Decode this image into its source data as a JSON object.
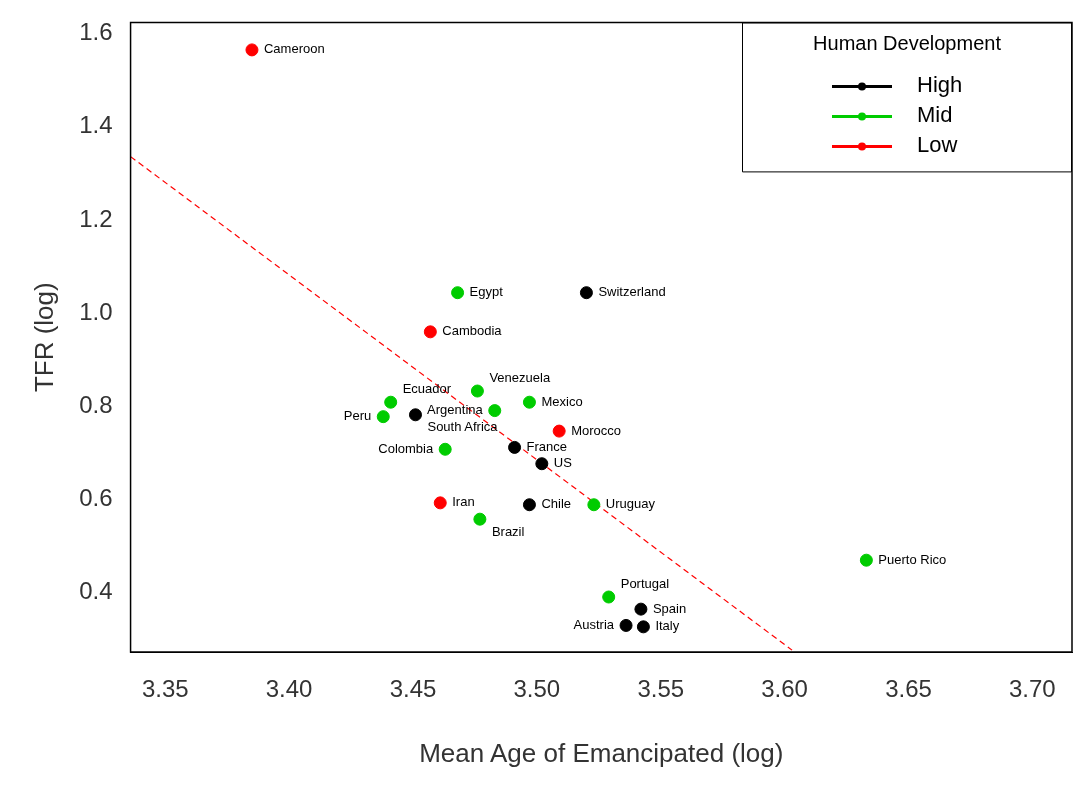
{
  "chart_data": {
    "type": "scatter",
    "xlabel": "Mean Age of Emancipated (log)",
    "ylabel": "TFR (log)",
    "legend_title": "Human Development",
    "legend": "top right",
    "grid": false,
    "marker": "circle",
    "xlim": [
      3.336,
      3.716
    ],
    "xticks": [
      3.35,
      {
        "value": 3.4,
        "label": "3.40"
      },
      3.45,
      {
        "value": 3.5,
        "label": "3.50"
      },
      3.55,
      {
        "value": 3.6,
        "label": "3.60"
      },
      3.65,
      {
        "value": 3.7,
        "label": "3.70"
      }
    ],
    "ylim": [
      0.273,
      1.624
    ],
    "yticks": [
      0.4,
      0.6,
      0.8,
      {
        "value": 1,
        "label": "1.0"
      },
      1.2,
      1.4,
      1.6
    ],
    "series": [
      {
        "name": "High",
        "color": "#000000",
        "x": [
          3.52,
          3.451,
          3.491,
          3.502,
          3.497,
          3.542,
          3.536,
          3.543
        ],
        "values": [
          1.044,
          0.782,
          0.712,
          0.677,
          0.589,
          0.365,
          0.33,
          0.327
        ]
      },
      {
        "name": "Mid",
        "color": "#00cc00",
        "x": [
          3.468,
          3.476,
          3.441,
          3.438,
          3.483,
          3.497,
          3.463,
          3.523,
          3.477,
          3.633,
          3.529
        ],
        "values": [
          1.044,
          0.833,
          0.809,
          0.778,
          0.791,
          0.809,
          0.708,
          0.589,
          0.558,
          0.47,
          0.391
        ]
      },
      {
        "name": "Low",
        "color": "#ff0000",
        "x": [
          3.385,
          3.457,
          3.509,
          3.461
        ],
        "values": [
          1.565,
          0.96,
          0.747,
          0.593
        ]
      },
      {
        "type": "line",
        "color": "#ff0000",
        "line_style": "dashed",
        "marker": "none",
        "x": [
          3.336,
          3.603
        ],
        "values": [
          1.336,
          0.277
        ]
      }
    ],
    "annotations": [
      {
        "text": "Cameroon",
        "x": 3.385,
        "y": 1.565
      },
      {
        "text": "Egypt",
        "x": 3.468,
        "y": 1.044
      },
      {
        "text": "Switzerland",
        "x": 3.52,
        "y": 1.044
      },
      {
        "text": "Cambodia",
        "x": 3.457,
        "y": 0.96
      },
      {
        "text": "Venezuela",
        "x": 3.476,
        "y": 0.833
      },
      {
        "text": "Ecuador",
        "x": 3.441,
        "y": 0.809
      },
      {
        "text": "Mexico",
        "x": 3.497,
        "y": 0.809
      },
      {
        "text": "Argentina",
        "x": 3.483,
        "y": 0.791
      },
      {
        "text": "South Africa",
        "x": 3.451,
        "y": 0.782
      },
      {
        "text": "Peru",
        "x": 3.438,
        "y": 0.778
      },
      {
        "text": "Morocco",
        "x": 3.509,
        "y": 0.747
      },
      {
        "text": "France",
        "x": 3.491,
        "y": 0.712
      },
      {
        "text": "Colombia",
        "x": 3.463,
        "y": 0.708
      },
      {
        "text": "US",
        "x": 3.502,
        "y": 0.677
      },
      {
        "text": "Iran",
        "x": 3.461,
        "y": 0.593
      },
      {
        "text": "Chile",
        "x": 3.497,
        "y": 0.589
      },
      {
        "text": "Uruguay",
        "x": 3.523,
        "y": 0.589
      },
      {
        "text": "Brazil",
        "x": 3.477,
        "y": 0.558
      },
      {
        "text": "Puerto Rico",
        "x": 3.633,
        "y": 0.47
      },
      {
        "text": "Portugal",
        "x": 3.529,
        "y": 0.391
      },
      {
        "text": "Spain",
        "x": 3.542,
        "y": 0.365
      },
      {
        "text": "Austria",
        "x": 3.536,
        "y": 0.33
      },
      {
        "text": "Italy",
        "x": 3.543,
        "y": 0.327
      }
    ]
  }
}
